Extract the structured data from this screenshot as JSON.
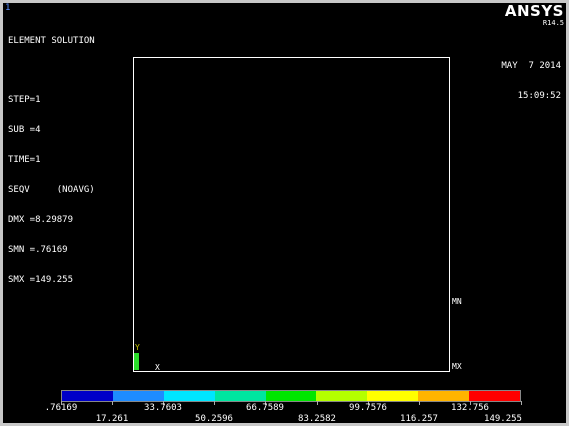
{
  "window_number": "1",
  "header": {
    "title": "ELEMENT SOLUTION",
    "lines": [
      "STEP=1",
      "SUB =4",
      "TIME=1",
      "SEQV     (NOAVG)",
      "DMX =8.29879",
      "SMN =.76169",
      "SMX =149.255"
    ]
  },
  "logo": {
    "brand": "ANSYS",
    "version": "R14.5"
  },
  "datetime": {
    "date": "MAY  7 2014",
    "time": "15:09:52"
  },
  "markers": {
    "mn": "MN",
    "mx": "MX"
  },
  "axes": {
    "y": "Y",
    "x": "X"
  },
  "legend": {
    "colors": [
      "#0000c8",
      "#1e8cff",
      "#00e6ff",
      "#00e6a0",
      "#00e600",
      "#b4ff00",
      "#ffff00",
      "#ffb400",
      "#ff0000"
    ],
    "labels_top": [
      ".76169",
      "33.7603",
      "66.7589",
      "99.7576",
      "132.756"
    ],
    "labels_bottom": [
      "17.261",
      "50.2596",
      "83.2582",
      "116.257",
      "149.255"
    ]
  }
}
